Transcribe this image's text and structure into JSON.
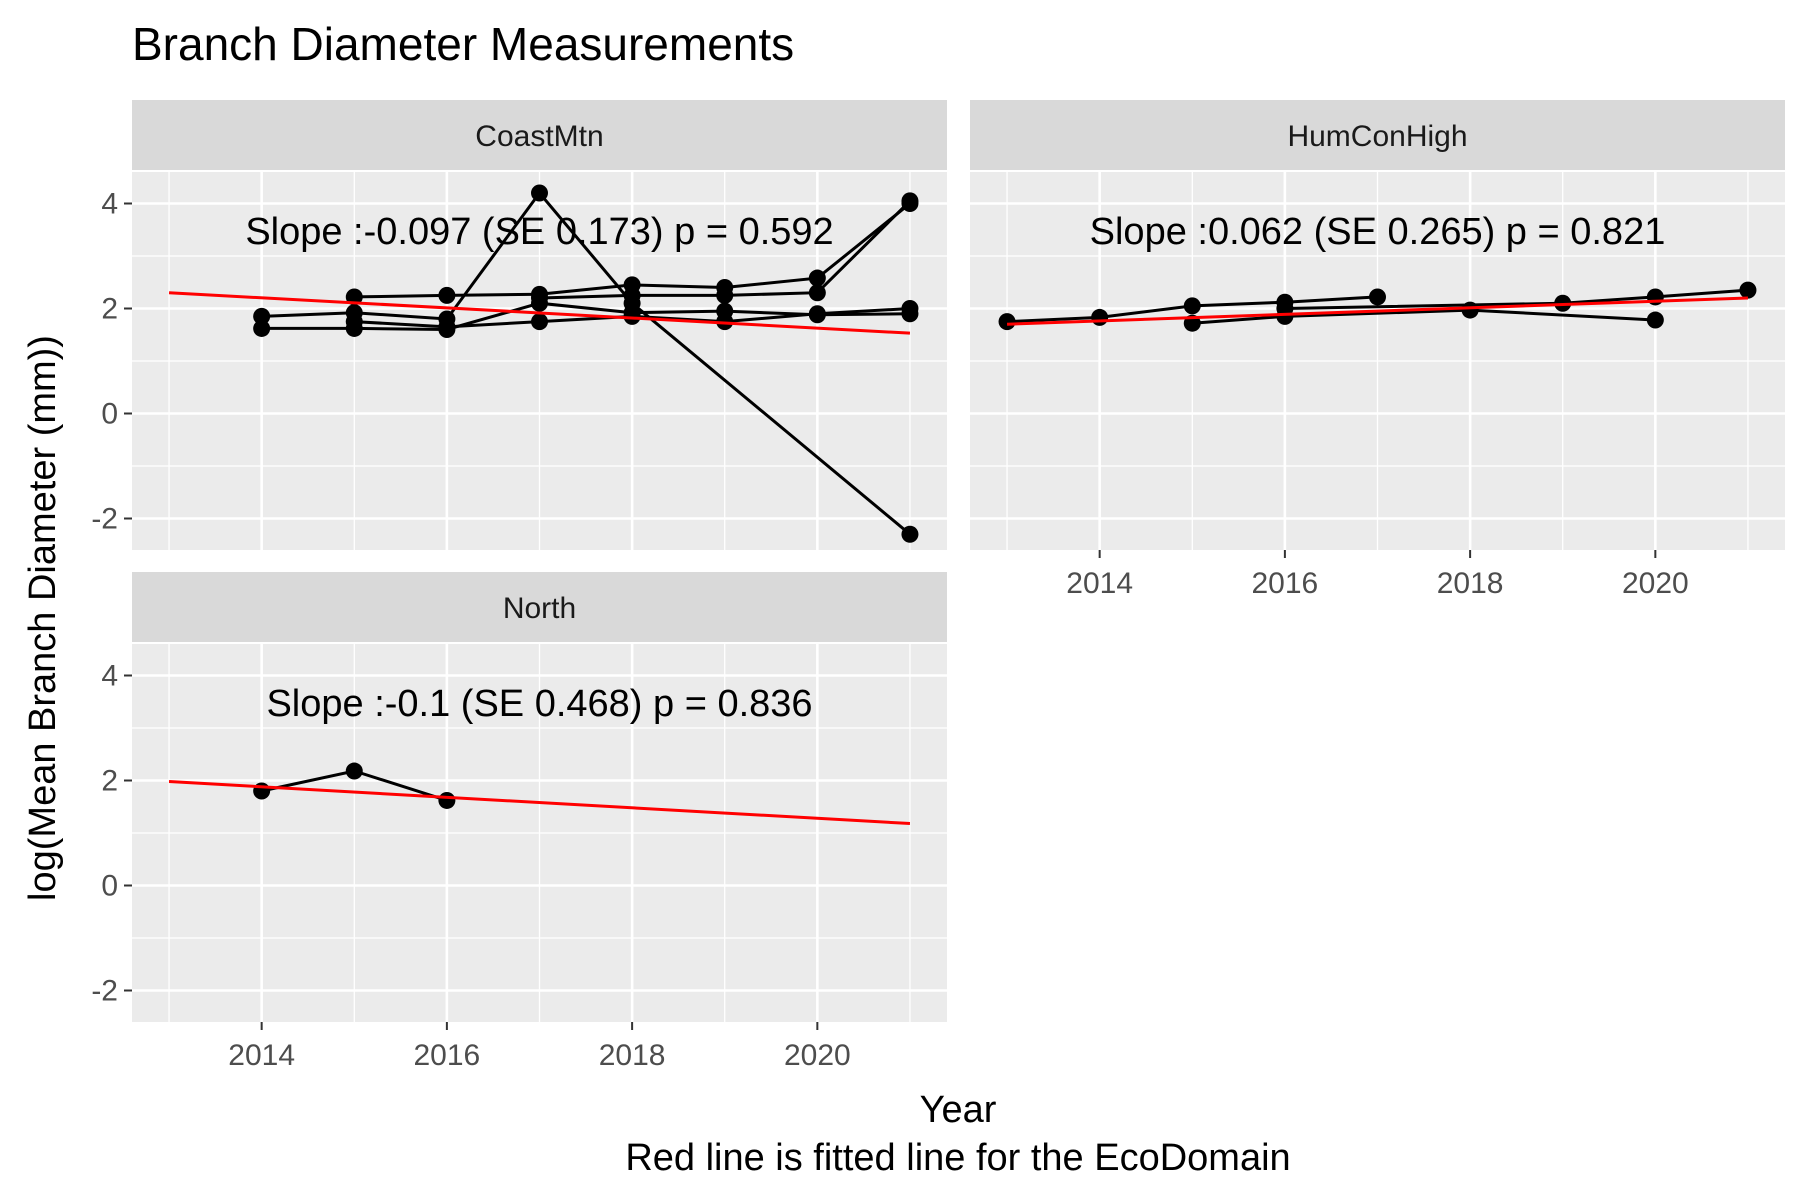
{
  "chart_data": {
    "type": "line",
    "title": "Branch Diameter Measurements",
    "xlabel": "Year",
    "caption": "Red line is fitted line for the EcoDomain",
    "ylabel": "log(Mean Branch Diameter (mm))",
    "xlim": [
      2012.6,
      2021.4
    ],
    "ylim": [
      -2.6,
      4.6
    ],
    "x_ticks": [
      2014,
      2016,
      2018,
      2020
    ],
    "y_ticks": [
      -2,
      0,
      2,
      4
    ],
    "grid": true,
    "colors": {
      "data": "#000000",
      "fit": "#ff0000",
      "panel": "#ebebeb",
      "strip": "#d9d9d9"
    },
    "panels": [
      {
        "facet": "CoastMtn",
        "annotation": "Slope :-0.097 (SE 0.173) p = 0.592",
        "fit": {
          "x": [
            2013,
            2021
          ],
          "y": [
            2.3,
            1.53
          ]
        },
        "series": [
          {
            "x": [
              2014,
              2015,
              2016,
              2017,
              2018,
              2021
            ],
            "y": [
              1.85,
              1.92,
              1.8,
              4.2,
              2.1,
              -2.3
            ]
          },
          {
            "x": [
              2015,
              2016,
              2017,
              2018,
              2019,
              2020,
              2021
            ],
            "y": [
              2.22,
              2.25,
              2.27,
              2.45,
              2.4,
              2.58,
              4.0
            ]
          },
          {
            "x": [
              2014,
              2015,
              2016,
              2017,
              2018,
              2019,
              2020,
              2021
            ],
            "y": [
              1.62,
              1.62,
              1.6,
              2.1,
              1.92,
              1.95,
              1.88,
              1.9
            ]
          },
          {
            "x": [
              2015,
              2016,
              2017,
              2018,
              2019,
              2020,
              2021
            ],
            "y": [
              1.75,
              1.65,
              1.75,
              1.85,
              1.75,
              1.9,
              2.0
            ]
          },
          {
            "x": [
              2017,
              2018,
              2019,
              2020,
              2021
            ],
            "y": [
              2.2,
              2.25,
              2.25,
              2.3,
              4.05
            ]
          }
        ]
      },
      {
        "facet": "HumConHigh",
        "annotation": "Slope :0.062 (SE 0.265) p = 0.821",
        "fit": {
          "x": [
            2013,
            2021
          ],
          "y": [
            1.7,
            2.2
          ]
        },
        "series": [
          {
            "x": [
              2013,
              2014,
              2015,
              2016,
              2017
            ],
            "y": [
              1.75,
              1.83,
              2.05,
              2.12,
              2.22
            ]
          },
          {
            "x": [
              2015,
              2016,
              2018,
              2020
            ],
            "y": [
              1.72,
              1.85,
              1.97,
              1.78
            ]
          },
          {
            "x": [
              2016,
              2019,
              2020,
              2021
            ],
            "y": [
              2.0,
              2.1,
              2.22,
              2.35
            ]
          }
        ]
      },
      {
        "facet": "North",
        "annotation": "Slope :-0.1 (SE 0.468) p = 0.836",
        "fit": {
          "x": [
            2013,
            2021
          ],
          "y": [
            1.98,
            1.18
          ]
        },
        "series": [
          {
            "x": [
              2014,
              2015,
              2016
            ],
            "y": [
              1.8,
              2.18,
              1.62
            ]
          }
        ]
      }
    ]
  }
}
